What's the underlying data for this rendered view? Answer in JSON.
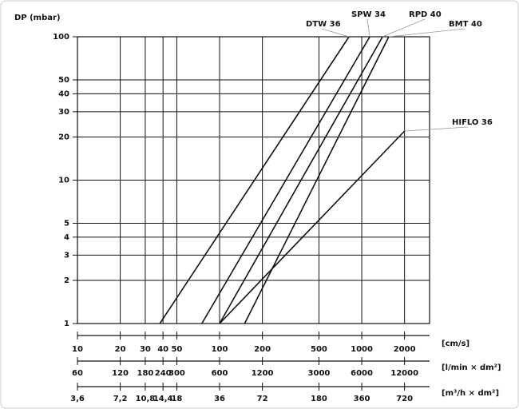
{
  "chart_data": {
    "type": "line",
    "y_label": "DP (mbar)",
    "x_label": "[cm/s]",
    "log_x": true,
    "log_y": true,
    "grid": true,
    "color": "#111111",
    "xlim": [
      10,
      3000
    ],
    "xticks": [
      10,
      20,
      30,
      40,
      50,
      100,
      200,
      500,
      1000,
      2000
    ],
    "ylim": [
      1,
      100
    ],
    "yticks": [
      1,
      2,
      3,
      4,
      5,
      10,
      20,
      30,
      40,
      50,
      100
    ],
    "series": [
      {
        "name": "DTW 36",
        "x": [
          38,
          813
        ],
        "values": [
          1,
          100
        ]
      },
      {
        "name": "SPW 34",
        "x": [
          75,
          1138
        ],
        "values": [
          1,
          100
        ]
      },
      {
        "name": "RPD 40",
        "x": [
          100,
          1400
        ],
        "values": [
          1,
          100
        ]
      },
      {
        "name": "BMT 40",
        "x": [
          150,
          1550
        ],
        "values": [
          1,
          100
        ]
      },
      {
        "name": "HIFLO 36",
        "x": [
          100,
          2000
        ],
        "values": [
          1,
          22
        ]
      }
    ],
    "extra_x_axes": [
      {
        "label": "[l/min × dm²]",
        "xlim": [
          60,
          18000
        ],
        "xticks": [
          60,
          120,
          180,
          240,
          300,
          600,
          1200,
          3000,
          6000,
          12000
        ]
      },
      {
        "label": "[m³/h × dm²]",
        "xlim": [
          3.6,
          1080
        ],
        "xticks": [
          {
            "value": 3.6,
            "label": "3,6"
          },
          {
            "value": 7.2,
            "label": "7,2"
          },
          {
            "value": 10.8,
            "label": "10,8"
          },
          {
            "value": 14.4,
            "label": "14,4"
          },
          18,
          36,
          72,
          180,
          360,
          720
        ]
      }
    ]
  }
}
